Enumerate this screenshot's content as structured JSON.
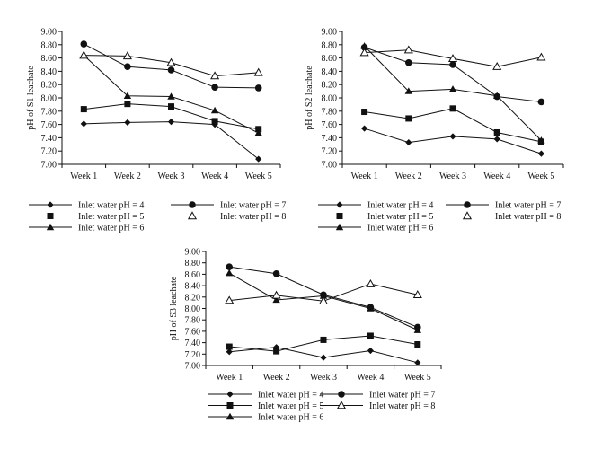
{
  "chart_data": [
    {
      "type": "line",
      "ylabel": "pH of S1 leachate",
      "categories": [
        "Week 1",
        "Week 2",
        "Week 3",
        "Week 4",
        "Week 5"
      ],
      "ylim": [
        7.0,
        9.0
      ],
      "yticks": [
        "7.00",
        "7.20",
        "7.40",
        "7.60",
        "7.80",
        "8.00",
        "8.20",
        "8.40",
        "8.60",
        "8.80",
        "9.00"
      ],
      "series": [
        {
          "name": "Inlet water pH = 4",
          "marker": "diamond",
          "values": [
            7.61,
            7.63,
            7.64,
            7.6,
            7.08
          ]
        },
        {
          "name": "Inlet water pH = 5",
          "marker": "square",
          "values": [
            7.83,
            7.91,
            7.87,
            7.65,
            7.53
          ]
        },
        {
          "name": "Inlet water pH = 6",
          "marker": "triangle",
          "values": [
            8.64,
            8.03,
            8.02,
            7.81,
            7.47
          ]
        },
        {
          "name": "Inlet water pH = 7",
          "marker": "circle",
          "values": [
            8.81,
            8.47,
            8.42,
            8.16,
            8.15
          ]
        },
        {
          "name": "Inlet water pH = 8",
          "marker": "open-triangle",
          "values": [
            8.64,
            8.63,
            8.53,
            8.33,
            8.38
          ]
        }
      ]
    },
    {
      "type": "line",
      "ylabel": "pH of S2 leachate",
      "categories": [
        "Week 1",
        "Week 2",
        "Week 3",
        "Week 4",
        "Week 5"
      ],
      "ylim": [
        7.0,
        9.0
      ],
      "yticks": [
        "7.00",
        "7.20",
        "7.40",
        "7.60",
        "7.80",
        "8.00",
        "8.20",
        "8.40",
        "8.60",
        "8.80",
        "9.00"
      ],
      "series": [
        {
          "name": "Inlet water pH = 4",
          "marker": "diamond",
          "values": [
            7.54,
            7.33,
            7.42,
            7.38,
            7.16
          ]
        },
        {
          "name": "Inlet water pH = 5",
          "marker": "square",
          "values": [
            7.79,
            7.69,
            7.84,
            7.48,
            7.34
          ]
        },
        {
          "name": "Inlet water pH = 6",
          "marker": "triangle",
          "values": [
            8.78,
            8.1,
            8.13,
            8.03,
            7.36
          ]
        },
        {
          "name": "Inlet water pH = 7",
          "marker": "circle",
          "values": [
            8.76,
            8.53,
            8.5,
            8.02,
            7.94
          ]
        },
        {
          "name": "Inlet water pH = 8",
          "marker": "open-triangle",
          "values": [
            8.68,
            8.72,
            8.59,
            8.47,
            8.61
          ]
        }
      ]
    },
    {
      "type": "line",
      "ylabel": "pH of S3 leachate",
      "categories": [
        "Week 1",
        "Week 2",
        "Week 3",
        "Week 4",
        "Week 5"
      ],
      "ylim": [
        7.0,
        9.0
      ],
      "yticks": [
        "7.00",
        "7.20",
        "7.40",
        "7.60",
        "7.80",
        "8.00",
        "8.20",
        "8.40",
        "8.60",
        "8.80",
        "9.00"
      ],
      "series": [
        {
          "name": "Inlet water pH = 4",
          "marker": "diamond",
          "values": [
            7.24,
            7.32,
            7.14,
            7.26,
            7.05
          ]
        },
        {
          "name": "Inlet water pH = 5",
          "marker": "square",
          "values": [
            7.33,
            7.25,
            7.45,
            7.52,
            7.37
          ]
        },
        {
          "name": "Inlet water pH = 6",
          "marker": "triangle",
          "values": [
            8.62,
            8.15,
            8.22,
            8.0,
            7.62
          ]
        },
        {
          "name": "Inlet water pH = 7",
          "marker": "circle",
          "values": [
            8.73,
            8.61,
            8.24,
            8.02,
            7.67
          ]
        },
        {
          "name": "Inlet water pH = 8",
          "marker": "open-triangle",
          "values": [
            8.14,
            8.23,
            8.13,
            8.43,
            8.24
          ]
        }
      ]
    }
  ]
}
